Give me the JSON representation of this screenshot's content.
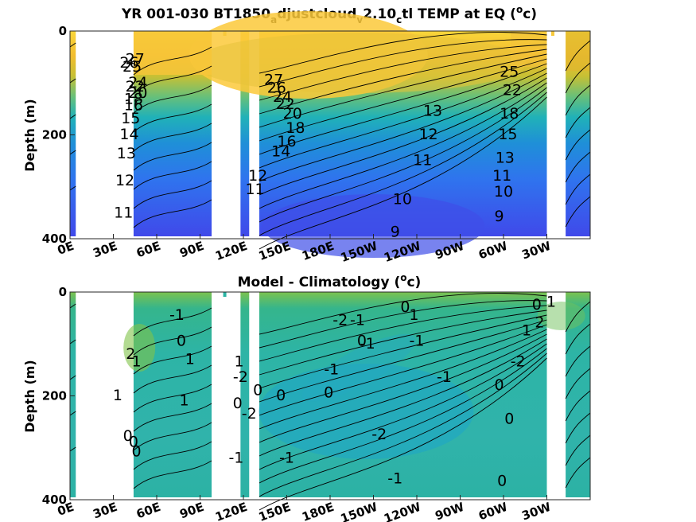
{
  "chart_data": [
    {
      "type": "heatmap",
      "title_main": "YR 001-030 BT1850",
      "title_sub1": "a",
      "title_mid": "djustcloud",
      "title_sub2": "v",
      "title_mid2": "2.10",
      "title_sub3": "c",
      "title_tail": "tl TEMP at EQ (",
      "title_sup": "o",
      "title_unit": "c)",
      "ylabel": "Depth (m)",
      "xlabel": "",
      "yticks": [
        "0",
        "200",
        "400"
      ],
      "xticks": [
        "0E",
        "30E",
        "60E",
        "90E",
        "120E",
        "150E",
        "180E",
        "150W",
        "120W",
        "90W",
        "60W",
        "30W"
      ],
      "xlim": [
        0,
        360
      ],
      "ylim": [
        400,
        0
      ],
      "colormap": "parula",
      "contour_labels": [
        {
          "text": "27",
          "lon": 45,
          "depth": 55
        },
        {
          "text": "26",
          "lon": 41,
          "depth": 62
        },
        {
          "text": "25",
          "lon": 43,
          "depth": 70
        },
        {
          "text": "24",
          "lon": 47,
          "depth": 100
        },
        {
          "text": "22",
          "lon": 45,
          "depth": 108
        },
        {
          "text": "20",
          "lon": 47,
          "depth": 120
        },
        {
          "text": "18",
          "lon": 44,
          "depth": 132
        },
        {
          "text": "16",
          "lon": 44,
          "depth": 144
        },
        {
          "text": "15",
          "lon": 42,
          "depth": 169
        },
        {
          "text": "14",
          "lon": 41,
          "depth": 200
        },
        {
          "text": "13",
          "lon": 39,
          "depth": 237
        },
        {
          "text": "12",
          "lon": 38,
          "depth": 289
        },
        {
          "text": "11",
          "lon": 37,
          "depth": 351
        },
        {
          "text": "27",
          "lon": 141,
          "depth": 95
        },
        {
          "text": "26",
          "lon": 143,
          "depth": 110
        },
        {
          "text": "24",
          "lon": 147,
          "depth": 128
        },
        {
          "text": "22",
          "lon": 149,
          "depth": 142
        },
        {
          "text": "20",
          "lon": 154,
          "depth": 160
        },
        {
          "text": "18",
          "lon": 156,
          "depth": 188
        },
        {
          "text": "16",
          "lon": 150,
          "depth": 214
        },
        {
          "text": "14",
          "lon": 146,
          "depth": 233
        },
        {
          "text": "12",
          "lon": 130,
          "depth": 280
        },
        {
          "text": "11",
          "lon": 128,
          "depth": 306
        },
        {
          "text": "13",
          "lon": 251,
          "depth": 155
        },
        {
          "text": "12",
          "lon": 248,
          "depth": 200
        },
        {
          "text": "11",
          "lon": 244,
          "depth": 250
        },
        {
          "text": "10",
          "lon": 230,
          "depth": 325
        },
        {
          "text": "9",
          "lon": 225,
          "depth": 388
        },
        {
          "text": "25",
          "lon": 304,
          "depth": 80
        },
        {
          "text": "22",
          "lon": 306,
          "depth": 115
        },
        {
          "text": "18",
          "lon": 304,
          "depth": 160
        },
        {
          "text": "15",
          "lon": 303,
          "depth": 200
        },
        {
          "text": "13",
          "lon": 301,
          "depth": 245
        },
        {
          "text": "11",
          "lon": 299,
          "depth": 280
        },
        {
          "text": "10",
          "lon": 300,
          "depth": 310
        },
        {
          "text": "9",
          "lon": 297,
          "depth": 358
        }
      ]
    },
    {
      "type": "heatmap",
      "title_main": "Model - Climatology (",
      "title_sup": "o",
      "title_unit": "c)",
      "ylabel": "Depth (m)",
      "xlabel": "",
      "yticks": [
        "0",
        "200",
        "400"
      ],
      "xticks": [
        "0E",
        "30E",
        "60E",
        "90E",
        "120E",
        "150E",
        "180E",
        "150W",
        "120W",
        "90W",
        "60W",
        "30W"
      ],
      "xlim": [
        0,
        360
      ],
      "ylim": [
        400,
        0
      ],
      "colormap": "parula",
      "contour_labels": [
        {
          "text": "-1",
          "lon": 74,
          "depth": 45
        },
        {
          "text": "0",
          "lon": 77,
          "depth": 95
        },
        {
          "text": "1",
          "lon": 83,
          "depth": 130
        },
        {
          "text": "2",
          "lon": 42,
          "depth": 120
        },
        {
          "text": "1",
          "lon": 46,
          "depth": 135
        },
        {
          "text": "1",
          "lon": 33,
          "depth": 200
        },
        {
          "text": "1",
          "lon": 79,
          "depth": 210
        },
        {
          "text": "0",
          "lon": 40,
          "depth": 278
        },
        {
          "text": "0",
          "lon": 44,
          "depth": 290
        },
        {
          "text": "0",
          "lon": 46,
          "depth": 308
        },
        {
          "text": "1",
          "lon": 117,
          "depth": 135
        },
        {
          "text": "-2",
          "lon": 118,
          "depth": 165
        },
        {
          "text": "0",
          "lon": 116,
          "depth": 215
        },
        {
          "text": "-1",
          "lon": 115,
          "depth": 320
        },
        {
          "text": "0",
          "lon": 130,
          "depth": 190
        },
        {
          "text": "-2",
          "lon": 124,
          "depth": 235
        },
        {
          "text": "0",
          "lon": 146,
          "depth": 200
        },
        {
          "text": "-1",
          "lon": 150,
          "depth": 320
        },
        {
          "text": "-2",
          "lon": 187,
          "depth": 55
        },
        {
          "text": "-1",
          "lon": 199,
          "depth": 55
        },
        {
          "text": "-1",
          "lon": 181,
          "depth": 150
        },
        {
          "text": "0",
          "lon": 202,
          "depth": 95
        },
        {
          "text": "-1",
          "lon": 206,
          "depth": 100
        },
        {
          "text": "0",
          "lon": 179,
          "depth": 195
        },
        {
          "text": "0",
          "lon": 232,
          "depth": 30
        },
        {
          "text": "1",
          "lon": 238,
          "depth": 45
        },
        {
          "text": "-1",
          "lon": 240,
          "depth": 95
        },
        {
          "text": "-1",
          "lon": 259,
          "depth": 165
        },
        {
          "text": "-2",
          "lon": 214,
          "depth": 275
        },
        {
          "text": "-1",
          "lon": 225,
          "depth": 360
        },
        {
          "text": "0",
          "lon": 297,
          "depth": 180
        },
        {
          "text": "0",
          "lon": 323,
          "depth": 25
        },
        {
          "text": "1",
          "lon": 333,
          "depth": 20
        },
        {
          "text": "1",
          "lon": 316,
          "depth": 75
        },
        {
          "text": "2",
          "lon": 325,
          "depth": 60
        },
        {
          "text": "-2",
          "lon": 310,
          "depth": 135
        },
        {
          "text": "0",
          "lon": 304,
          "depth": 245
        },
        {
          "text": "0",
          "lon": 299,
          "depth": 365
        }
      ]
    }
  ]
}
